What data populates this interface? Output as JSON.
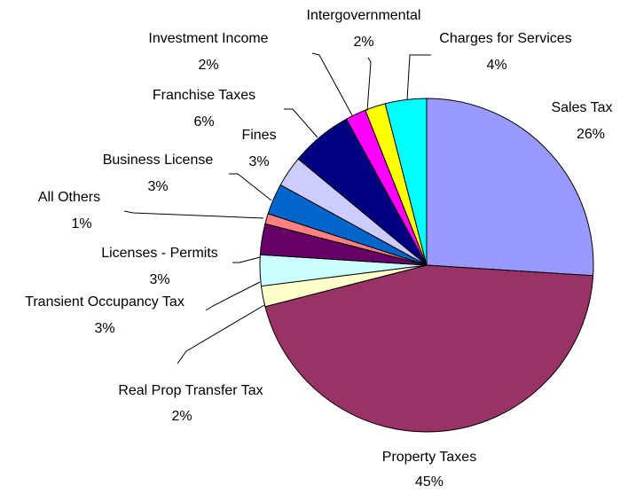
{
  "chart_data": {
    "type": "pie",
    "categories": [
      "Sales Tax",
      "Property Taxes",
      "Real Prop Transfer Tax",
      "Transient Occupancy Tax",
      "Licenses - Permits",
      "All Others",
      "Business License",
      "Fines",
      "Franchise Taxes",
      "Investment Income",
      "Intergovernmental",
      "Charges for Services"
    ],
    "values": [
      26,
      45,
      2,
      3,
      3,
      1,
      3,
      3,
      6,
      2,
      2,
      4
    ],
    "value_labels": [
      "26%",
      "45%",
      "2%",
      "3%",
      "3%",
      "1%",
      "3%",
      "3%",
      "6%",
      "2%",
      "2%",
      "4%"
    ],
    "colors": [
      "#9999ff",
      "#993366",
      "#ffffcc",
      "#ccffff",
      "#660066",
      "#ff8080",
      "#0066cc",
      "#ccccff",
      "#000080",
      "#ff00ff",
      "#ffff00",
      "#00ffff"
    ]
  }
}
